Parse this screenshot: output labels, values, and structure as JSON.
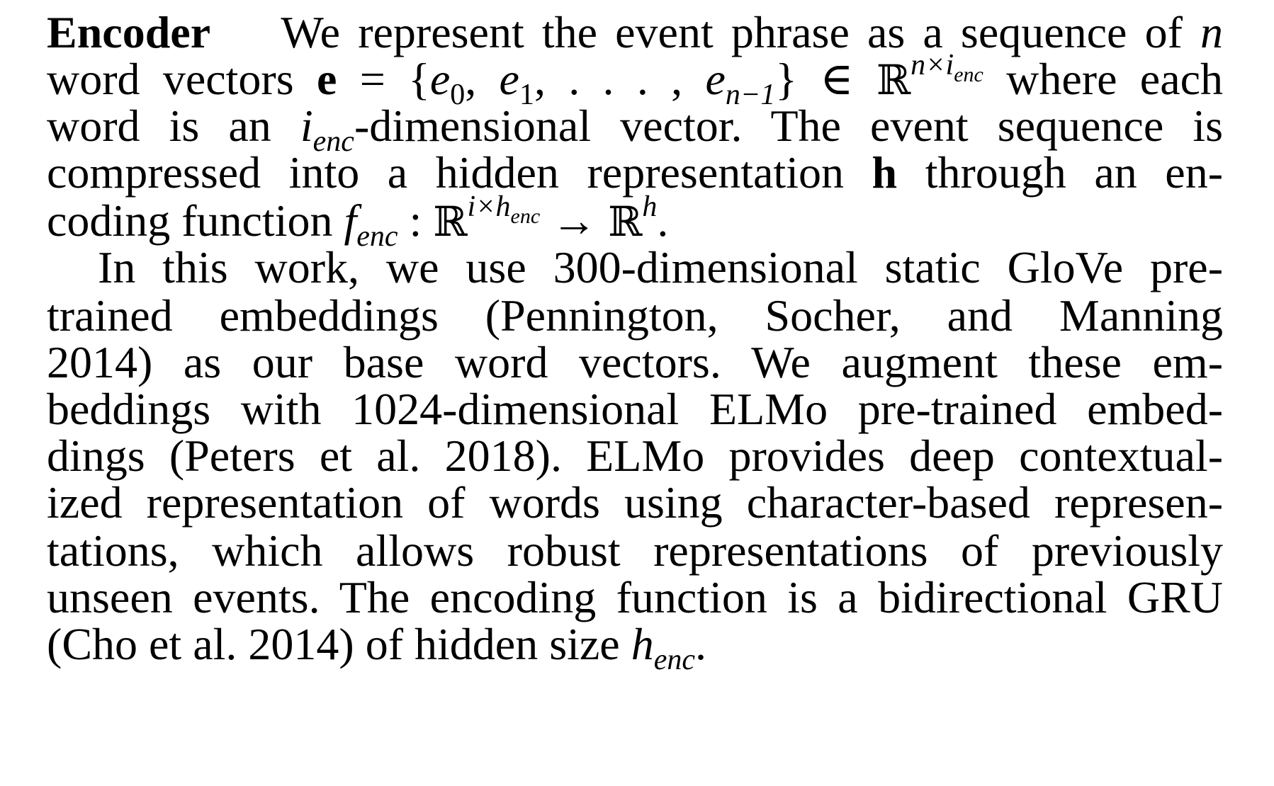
{
  "section": {
    "heading": "Encoder"
  },
  "paragraph1": {
    "l1_text": "We represent the event phrase as a sequence of",
    "l1_n": "n",
    "l2_a": "word vectors",
    "l2_e": "e",
    "l2_eq": "= {",
    "l2_e0": "e",
    "l2_s0": "0",
    "l2_c1": ", ",
    "l2_e1": "e",
    "l2_s1": "1",
    "l2_dots": ", . . . , ",
    "l2_en": "e",
    "l2_sn": "n−1",
    "l2_close": "} ∈ ",
    "l2_R": "ℝ",
    "l2_sup_a": "n×i",
    "l2_sup_b": "enc",
    "l2_end": "where each",
    "l3_a": "word is an",
    "l3_i": "i",
    "l3_enc": "enc",
    "l3_b": "-dimensional vector. The event sequence is",
    "l4_a": "compressed into a hidden representation",
    "l4_h": "h",
    "l4_b": "through an en-",
    "l5_a": "coding function",
    "l5_f": "f",
    "l5_enc": "enc",
    "l5_colon": " : ",
    "l5_R1": "ℝ",
    "l5_sup_a": "i×h",
    "l5_sup_b": "enc",
    "l5_arrow": " → ",
    "l5_R2": "ℝ",
    "l5_sup_h": "h",
    "l5_end": "."
  },
  "paragraph2": {
    "lines": [
      "In this work, we use 300-dimensional static GloVe pre-",
      "trained embeddings (Pennington, Socher, and Manning",
      "2014) as our base word vectors. We augment these em-",
      "beddings with 1024-dimensional ELMo pre-trained embed-",
      "dings (Peters et al. 2018). ELMo provides deep contextual-",
      "ized representation of words using character-based represen-",
      "tations, which allows robust representations of previously",
      "unseen events. The encoding function is a bidirectional GRU"
    ],
    "last_a": "(Cho et al. 2014) of hidden size",
    "last_h": "h",
    "last_enc": "enc",
    "last_end": "."
  }
}
